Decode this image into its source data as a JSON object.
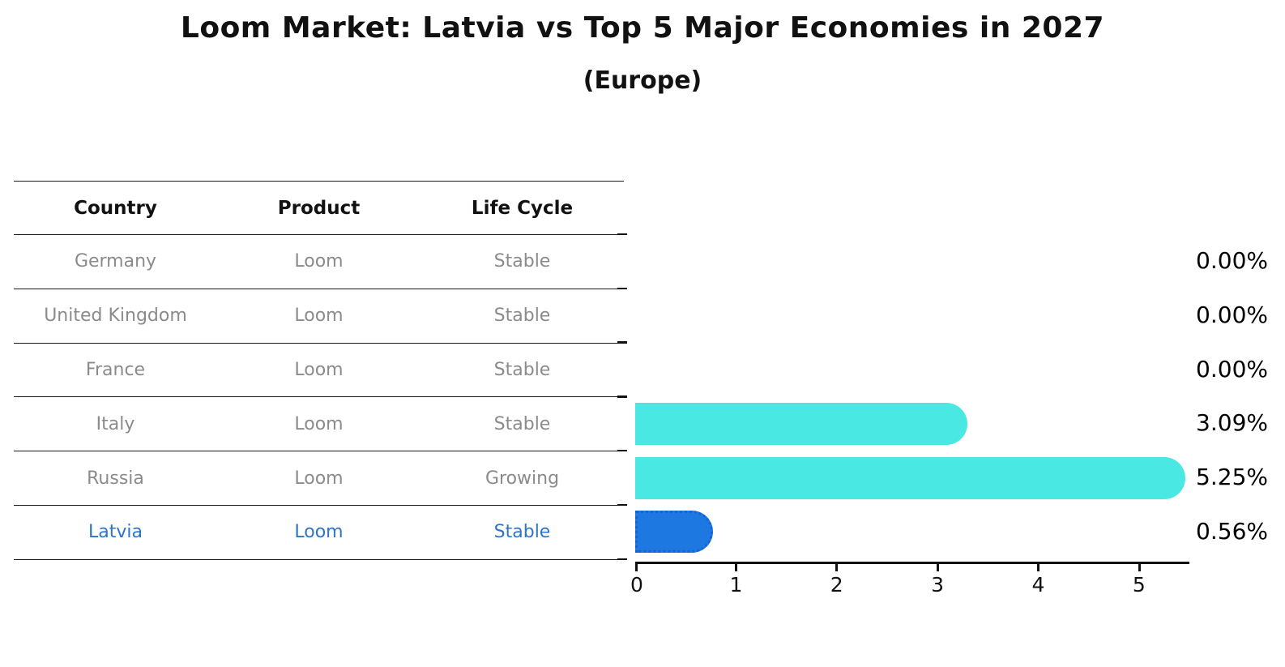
{
  "title": "Loom Market: Latvia vs Top 5 Major Economies in 2027",
  "subtitle": "(Europe)",
  "table": {
    "headers": [
      "Country",
      "Product",
      "Life Cycle"
    ],
    "rows": [
      {
        "country": "Germany",
        "product": "Loom",
        "life_cycle": "Stable",
        "highlight": false
      },
      {
        "country": "United Kingdom",
        "product": "Loom",
        "life_cycle": "Stable",
        "highlight": false
      },
      {
        "country": "France",
        "product": "Loom",
        "life_cycle": "Stable",
        "highlight": false
      },
      {
        "country": "Italy",
        "product": "Loom",
        "life_cycle": "Stable",
        "highlight": false
      },
      {
        "country": "Russia",
        "product": "Loom",
        "life_cycle": "Growing",
        "highlight": false
      },
      {
        "country": "Latvia",
        "product": "Loom",
        "life_cycle": "Stable",
        "highlight": true
      }
    ]
  },
  "chart_data": {
    "type": "bar",
    "orientation": "horizontal",
    "title": "Loom Market: Latvia vs Top 5 Major Economies in 2027 (Europe)",
    "categories": [
      "Germany",
      "United Kingdom",
      "France",
      "Italy",
      "Russia",
      "Latvia"
    ],
    "values": [
      0.0,
      0.0,
      0.0,
      3.09,
      5.25,
      0.56
    ],
    "value_labels": [
      "0.00%",
      "0.00%",
      "0.00%",
      "3.09%",
      "5.25%",
      "0.56%"
    ],
    "xlabel": "",
    "ylabel": "",
    "xlim": [
      0,
      5.5
    ],
    "xticks": [
      "0",
      "1",
      "2",
      "3",
      "4",
      "5"
    ],
    "grid": false,
    "legend": false,
    "highlight_index": 5,
    "colors": {
      "default_bar": "#49e8e2",
      "highlight_bar": "#1e78e2",
      "highlight_edge": "#1463d6",
      "highlight_text": "#2e74c9",
      "table_text": "#8b8b8b",
      "axis_text": "#111111"
    }
  }
}
